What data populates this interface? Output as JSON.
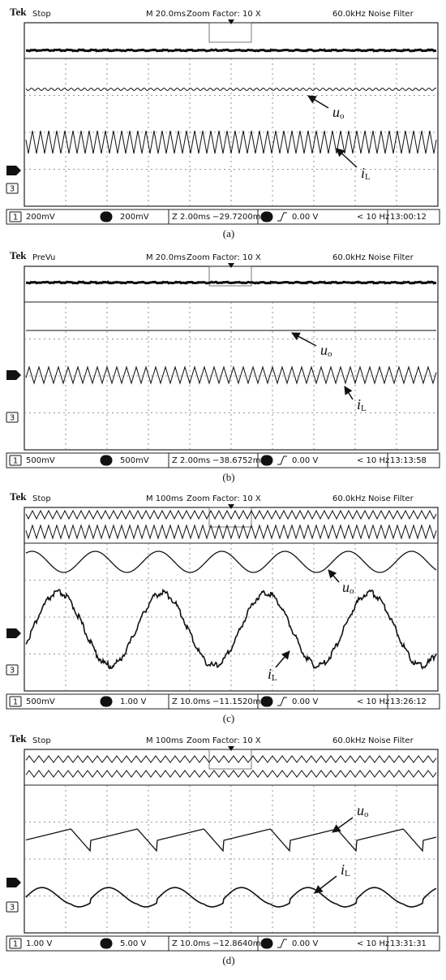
{
  "panels": [
    {
      "brand": "Tek",
      "mode": "Stop",
      "timebase": "M 20.0ms",
      "zoom": "Zoom Factor: 10 X",
      "filter": "60.0kHz",
      "filter_name": "Noise Filter",
      "status": {
        "ch1": "1",
        "ch1_scale": "200mV",
        "ch3": "3",
        "ch3_scale": "200mV",
        "zoom_scale": "Z 2.00ms",
        "position": "−29.7200ms",
        "trigger": "0.00 V",
        "frequency": "< 10 Hz",
        "time": "13:00:12"
      },
      "labels": {
        "u": "u",
        "u_sub": "o",
        "i": "i",
        "i_sub": "L"
      },
      "caption": "(a)"
    },
    {
      "brand": "Tek",
      "mode": "PreVu",
      "timebase": "M 20.0ms",
      "zoom": "Zoom Factor: 10 X",
      "filter": "60.0kHz",
      "filter_name": "Noise Filter",
      "status": {
        "ch1": "1",
        "ch1_scale": "500mV",
        "ch3": "3",
        "ch3_scale": "500mV",
        "zoom_scale": "Z 2.00ms",
        "position": "−38.6752ms",
        "trigger": "0.00 V",
        "frequency": "< 10 Hz",
        "time": "13:13:58"
      },
      "labels": {
        "u": "u",
        "u_sub": "o",
        "i": "i",
        "i_sub": "L"
      },
      "caption": "(b)"
    },
    {
      "brand": "Tek",
      "mode": "Stop",
      "timebase": "M 100ms",
      "zoom": "Zoom Factor: 10 X",
      "filter": "60.0kHz",
      "filter_name": "Noise Filter",
      "status": {
        "ch1": "1",
        "ch1_scale": "500mV",
        "ch3": "3",
        "ch3_scale": "1.00 V",
        "zoom_scale": "Z 10.0ms",
        "position": "−11.1520ms",
        "trigger": "0.00 V",
        "frequency": "< 10 Hz",
        "time": "13:26:12"
      },
      "labels": {
        "u": "u",
        "u_sub": "o",
        "i": "i",
        "i_sub": "L"
      },
      "caption": "(c)"
    },
    {
      "brand": "Tek",
      "mode": "Stop",
      "timebase": "M 100ms",
      "zoom": "Zoom Factor: 10 X",
      "filter": "60.0kHz",
      "filter_name": "Noise Filter",
      "status": {
        "ch1": "1",
        "ch1_scale": "1.00 V",
        "ch3": "3",
        "ch3_scale": "5.00 V",
        "zoom_scale": "Z 10.0ms",
        "position": "−12.8640ms",
        "trigger": "0.00 V",
        "frequency": "< 10 Hz",
        "time": "13:31:31"
      },
      "labels": {
        "u": "u",
        "u_sub": "o",
        "i": "i",
        "i_sub": "L"
      },
      "caption": "(d)"
    }
  ]
}
